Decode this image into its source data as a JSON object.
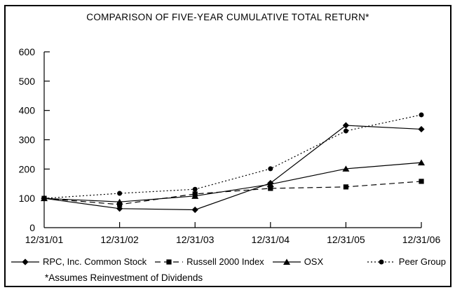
{
  "chart_data": {
    "type": "line",
    "title": "COMPARISON OF FIVE-YEAR CUMULATIVE TOTAL RETURN*",
    "footnote": "*Assumes Reinvestment of Dividends",
    "categories": [
      "12/31/01",
      "12/31/02",
      "12/31/03",
      "12/31/04",
      "12/31/05",
      "12/31/06"
    ],
    "ylim": [
      0,
      600
    ],
    "yticks": [
      0,
      100,
      200,
      300,
      400,
      500,
      600
    ],
    "grid": false,
    "legend_position": "bottom",
    "axis_color": "#000000",
    "line_color": "#000000",
    "background": "#ffffff",
    "series": [
      {
        "name": "RPC, Inc. Common Stock",
        "marker": "diamond",
        "line": "solid",
        "values": [
          100,
          65,
          61,
          152,
          349,
          336
        ]
      },
      {
        "name": "Russell 2000 Index",
        "marker": "square",
        "line": "dashed",
        "values": [
          100,
          79,
          115,
          134,
          139,
          158
        ]
      },
      {
        "name": "OSX",
        "marker": "triangle",
        "line": "solid",
        "values": [
          100,
          88,
          108,
          148,
          201,
          222
        ]
      },
      {
        "name": "Peer Group",
        "marker": "circle",
        "line": "dotted",
        "values": [
          100,
          117,
          131,
          201,
          330,
          385
        ]
      }
    ]
  }
}
